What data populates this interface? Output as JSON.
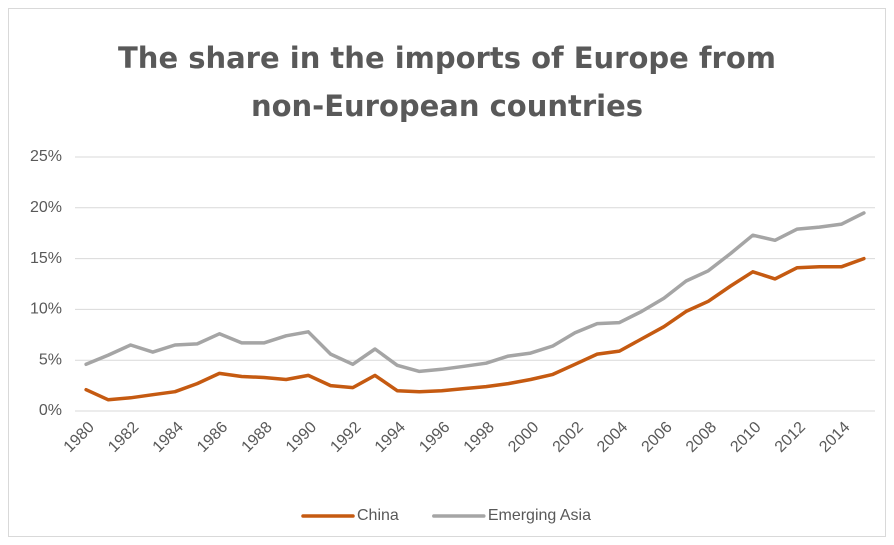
{
  "chart_data": {
    "type": "line",
    "title": "The share in the imports of Europe from non-European countries",
    "categories": [
      "1980",
      null,
      "1982",
      null,
      "1984",
      null,
      "1986",
      null,
      "1988",
      null,
      "1990",
      null,
      "1992",
      null,
      "1994",
      null,
      "1996",
      null,
      "1998",
      null,
      "2000",
      null,
      "2002",
      null,
      "2004",
      null,
      "2006",
      null,
      "2008",
      null,
      "2010",
      null,
      "2012",
      null,
      "2014",
      null
    ],
    "series": [
      {
        "name": "China",
        "color": "#c55a11",
        "values": [
          2.1,
          1.1,
          1.3,
          1.6,
          1.9,
          2.7,
          3.7,
          3.4,
          3.3,
          3.1,
          3.5,
          2.5,
          2.3,
          3.5,
          2.0,
          1.9,
          2.0,
          2.2,
          2.4,
          2.7,
          3.1,
          3.6,
          4.6,
          5.6,
          5.9,
          7.1,
          8.3,
          9.8,
          10.8,
          12.3,
          13.7,
          13.0,
          14.1,
          14.2,
          14.2,
          15.0
        ]
      },
      {
        "name": "Emerging Asia",
        "color": "#a5a5a5",
        "values": [
          4.6,
          5.5,
          6.5,
          5.8,
          6.5,
          6.6,
          7.6,
          6.7,
          6.7,
          7.4,
          7.8,
          5.6,
          4.6,
          6.1,
          4.5,
          3.9,
          4.1,
          4.4,
          4.7,
          5.4,
          5.7,
          6.4,
          7.7,
          8.6,
          8.7,
          9.8,
          11.1,
          12.8,
          13.8,
          15.5,
          17.3,
          16.8,
          17.9,
          18.1,
          18.4,
          19.5
        ]
      }
    ],
    "ylim": [
      0,
      25
    ],
    "yticks": [
      {
        "value": 0,
        "label": "0%"
      },
      {
        "value": 5,
        "label": "5%"
      },
      {
        "value": 10,
        "label": "10%"
      },
      {
        "value": 15,
        "label": "15%"
      },
      {
        "value": 20,
        "label": "20%"
      },
      {
        "value": 25,
        "label": "25%"
      }
    ],
    "grid": true,
    "legend": "bottom"
  }
}
